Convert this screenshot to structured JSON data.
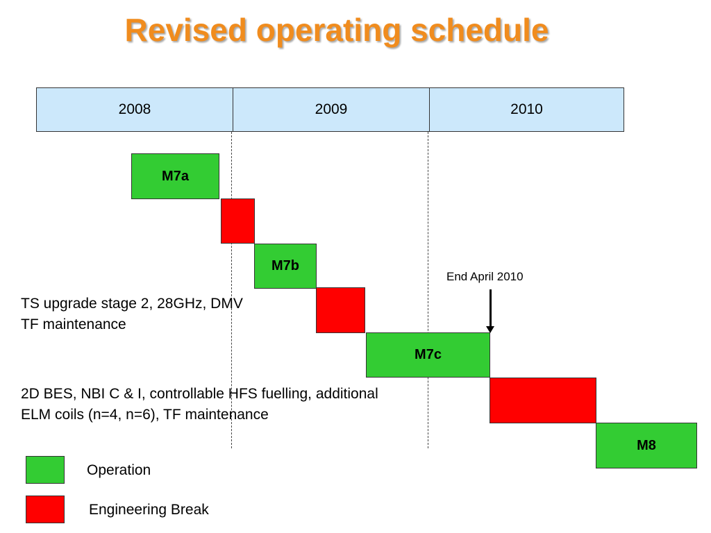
{
  "title": "Revised operating schedule",
  "timeline": {
    "years": [
      "2008",
      "2009",
      "2010"
    ]
  },
  "blocks": [
    {
      "label": "M7a",
      "type": "operation"
    },
    {
      "label": "",
      "type": "engineering_break"
    },
    {
      "label": "M7b",
      "type": "operation"
    },
    {
      "label": "",
      "type": "engineering_break"
    },
    {
      "label": "M7c",
      "type": "operation"
    },
    {
      "label": "",
      "type": "engineering_break"
    },
    {
      "label": "M8",
      "type": "operation"
    }
  ],
  "notes": {
    "break1_line1": "TS upgrade stage 2, 28GHz, DMV",
    "break1_line2": "TF maintenance",
    "break2_line1": "2D BES, NBI C & I, controllable HFS fuelling, additional",
    "break2_line2": "ELM coils (n=4, n=6), TF maintenance"
  },
  "marker": {
    "label": "End April 2010"
  },
  "legend": {
    "operation": "Operation",
    "engineering_break": "Engineering Break"
  },
  "colors": {
    "title": "#f08c1e",
    "operation": "#33cc33",
    "engineering_break": "#ff0000",
    "year_band": "#cce8fb"
  }
}
